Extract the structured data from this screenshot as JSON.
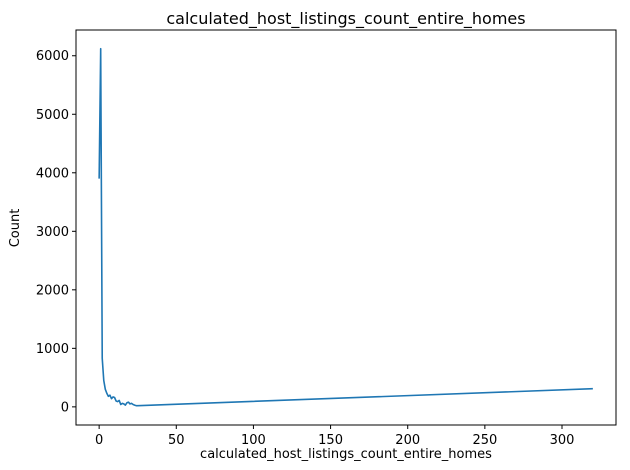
{
  "chart_data": {
    "type": "line",
    "title": "calculated_host_listings_count_entire_homes",
    "xlabel": "calculated_host_listings_count_entire_homes",
    "ylabel": "Count",
    "xlim": [
      -15,
      335
    ],
    "ylim": [
      -310,
      6440
    ],
    "xticks": [
      0,
      50,
      100,
      150,
      200,
      250,
      300
    ],
    "yticks": [
      0,
      1000,
      2000,
      3000,
      4000,
      5000,
      6000
    ],
    "grid": false,
    "series": [
      {
        "color": "#1f77b4",
        "x": [
          0,
          1,
          2,
          3,
          4,
          5,
          6,
          7,
          8,
          9,
          10,
          11,
          12,
          13,
          14,
          15,
          16,
          17,
          18,
          19,
          20,
          21,
          22,
          23,
          24,
          25,
          320
        ],
        "y": [
          3900,
          6120,
          830,
          450,
          300,
          230,
          180,
          200,
          140,
          170,
          160,
          100,
          90,
          110,
          40,
          60,
          50,
          30,
          70,
          80,
          50,
          60,
          40,
          30,
          20,
          20,
          310
        ]
      }
    ]
  }
}
